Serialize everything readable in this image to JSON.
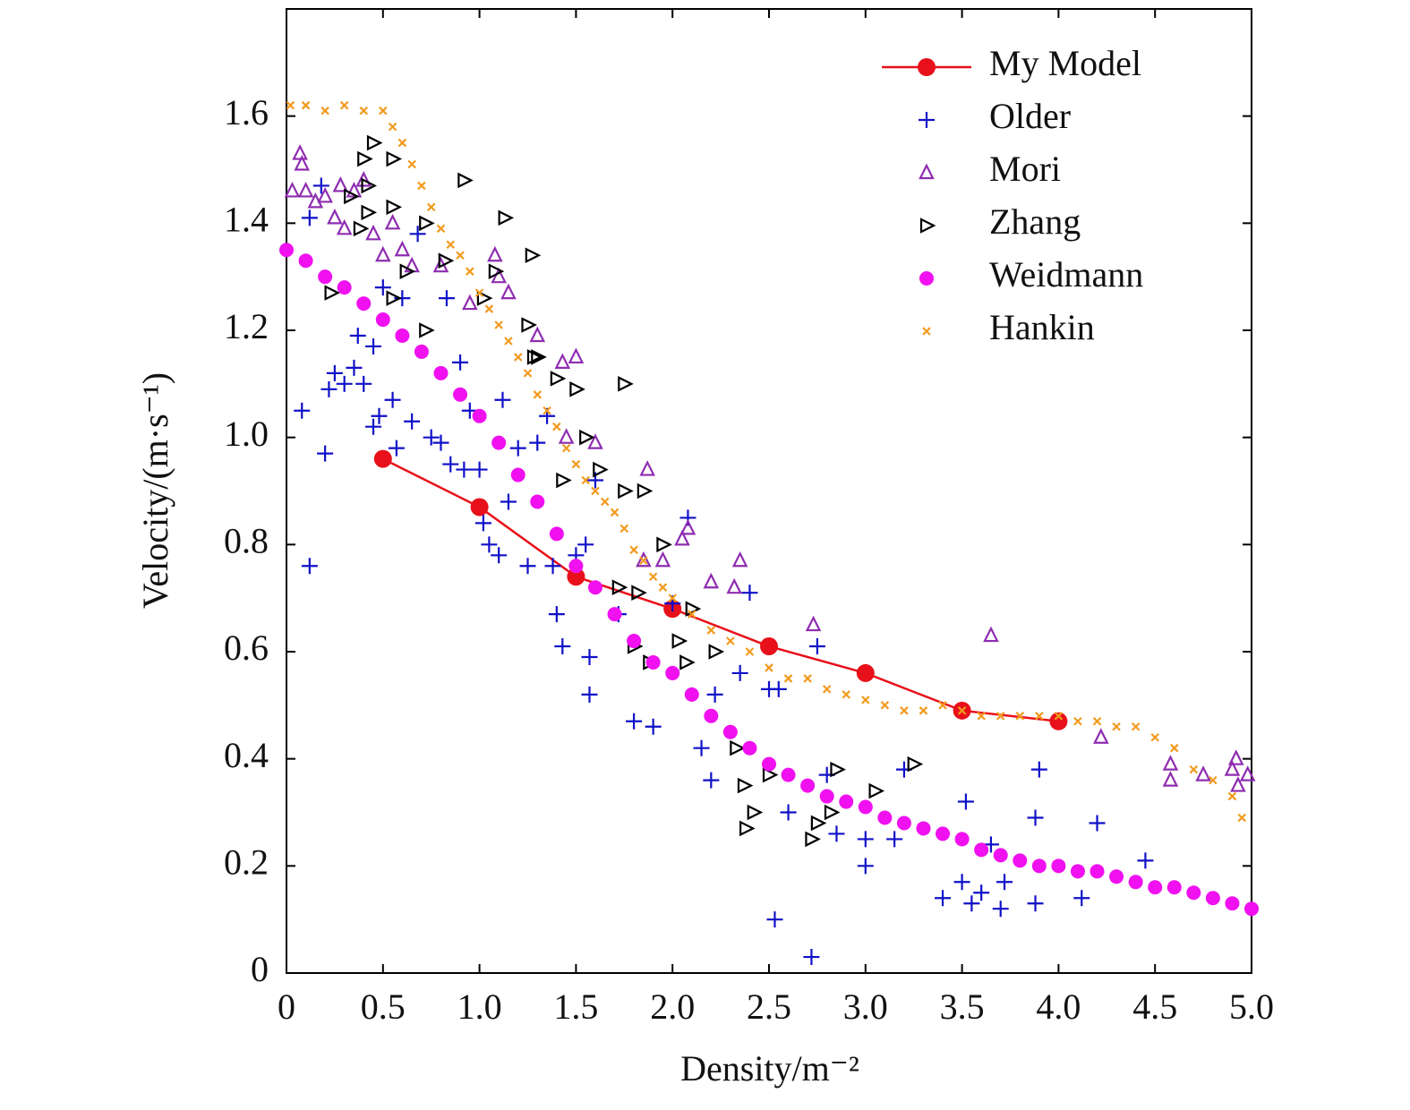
{
  "chart_data": {
    "type": "scatter",
    "x_label": "Density/m⁻²",
    "y_label": "Velocity/(m·s⁻¹)",
    "xlim": [
      0,
      5
    ],
    "ylim": [
      0,
      1.8
    ],
    "xticks": [
      0,
      0.5,
      {
        "value": 1,
        "label": "1.0"
      },
      1.5,
      {
        "value": 2,
        "label": "2.0"
      },
      2.5,
      {
        "value": 3,
        "label": "3.0"
      },
      3.5,
      {
        "value": 4,
        "label": "4.0"
      },
      4.5,
      {
        "value": 5,
        "label": "5.0"
      }
    ],
    "yticks": [
      0,
      0.2,
      0.4,
      0.6,
      0.8,
      {
        "value": 1,
        "label": "1.0"
      },
      1.2,
      1.4,
      1.6
    ],
    "legend": "upper right",
    "series": [
      {
        "name": "My Model",
        "color": "#e8101a",
        "marker": "circle",
        "line": true,
        "x": [
          0.5,
          1,
          1.5,
          2,
          2.5,
          3,
          3.5,
          4
        ],
        "values": [
          0.96,
          0.87,
          0.74,
          0.68,
          0.61,
          0.56,
          0.49,
          0.47
        ]
      },
      {
        "name": "Older",
        "color": "#1010c8",
        "marker": "plus",
        "x": [
          0.08,
          0.12,
          0.2,
          0.12,
          0.18,
          0.22,
          0.25,
          0.3,
          0.35,
          0.37,
          0.4,
          0.45,
          0.45,
          0.48,
          0.5,
          0.55,
          0.57,
          0.6,
          0.65,
          0.68,
          0.75,
          0.8,
          0.83,
          0.85,
          0.9,
          0.92,
          0.95,
          1.0,
          1.02,
          1.05,
          1.1,
          1.12,
          1.15,
          1.2,
          1.25,
          1.3,
          1.35,
          1.38,
          1.4,
          1.43,
          1.5,
          1.55,
          1.57,
          1.57,
          1.6,
          1.72,
          1.8,
          1.9,
          2.0,
          2.08,
          2.15,
          2.2,
          2.22,
          2.35,
          2.4,
          2.5,
          2.53,
          2.55,
          2.6,
          2.72,
          2.75,
          2.8,
          2.85,
          3.0,
          3.0,
          3.15,
          3.2,
          3.4,
          3.5,
          3.52,
          3.55,
          3.6,
          3.65,
          3.7,
          3.72,
          3.88,
          3.88,
          3.9,
          4.12,
          4.2,
          4.45
        ],
        "values": [
          1.05,
          0.76,
          0.97,
          1.41,
          1.47,
          1.09,
          1.12,
          1.1,
          1.13,
          1.19,
          1.1,
          1.17,
          1.02,
          1.04,
          1.28,
          1.07,
          0.98,
          1.26,
          1.03,
          1.38,
          1.0,
          0.99,
          1.26,
          0.95,
          1.14,
          0.94,
          1.05,
          0.94,
          0.84,
          0.8,
          0.78,
          1.07,
          0.88,
          0.98,
          0.76,
          0.99,
          1.04,
          0.76,
          0.67,
          0.61,
          0.78,
          0.8,
          0.59,
          0.52,
          0.92,
          0.67,
          0.47,
          0.46,
          0.69,
          0.85,
          0.42,
          0.36,
          0.52,
          0.56,
          0.71,
          0.53,
          0.1,
          0.53,
          0.3,
          0.03,
          0.61,
          0.37,
          0.26,
          0.2,
          0.25,
          0.25,
          0.38,
          0.14,
          0.17,
          0.32,
          0.13,
          0.15,
          0.24,
          0.12,
          0.17,
          0.13,
          0.29,
          0.38,
          0.14,
          0.28,
          0.21
        ]
      },
      {
        "name": "Mori",
        "color": "#8e2cb0",
        "marker": "triangle-up",
        "x": [
          0.03,
          0.07,
          0.08,
          0.1,
          0.15,
          0.2,
          0.25,
          0.28,
          0.3,
          0.35,
          0.4,
          0.45,
          0.5,
          0.55,
          0.6,
          0.65,
          0.8,
          0.95,
          1.08,
          1.1,
          1.15,
          1.3,
          1.43,
          1.5,
          1.45,
          1.6,
          1.85,
          1.87,
          1.95,
          2.05,
          2.08,
          2.2,
          2.32,
          2.35,
          2.73,
          3.65,
          4.22,
          4.58,
          4.58,
          4.75,
          4.9,
          4.92,
          4.93,
          4.98
        ],
        "values": [
          1.46,
          1.53,
          1.51,
          1.46,
          1.44,
          1.45,
          1.41,
          1.47,
          1.39,
          1.46,
          1.48,
          1.38,
          1.34,
          1.4,
          1.35,
          1.32,
          1.32,
          1.25,
          1.34,
          1.3,
          1.27,
          1.19,
          1.14,
          1.15,
          1.0,
          0.99,
          0.77,
          0.94,
          0.77,
          0.81,
          0.83,
          0.73,
          0.72,
          0.77,
          0.65,
          0.63,
          0.44,
          0.39,
          0.36,
          0.37,
          0.38,
          0.4,
          0.35,
          0.37
        ]
      },
      {
        "name": "Zhang",
        "color": "#000000",
        "marker": "triangle-right",
        "x": [
          0.23,
          0.33,
          0.38,
          0.4,
          0.42,
          0.42,
          0.45,
          0.55,
          0.55,
          0.55,
          0.62,
          0.72,
          0.72,
          0.82,
          0.92,
          1.02,
          1.08,
          1.13,
          1.25,
          1.27,
          1.28,
          1.3,
          1.4,
          1.43,
          1.5,
          1.55,
          1.62,
          1.72,
          1.75,
          1.75,
          1.8,
          1.82,
          1.85,
          1.88,
          1.95,
          2.03,
          2.07,
          2.1,
          2.22,
          2.33,
          2.37,
          2.38,
          2.42,
          2.5,
          2.72,
          2.75,
          2.82,
          2.85,
          3.05,
          3.25
        ],
        "values": [
          1.27,
          1.45,
          1.39,
          1.52,
          1.47,
          1.42,
          1.55,
          1.52,
          1.43,
          1.26,
          1.31,
          1.4,
          1.2,
          1.33,
          1.48,
          1.26,
          1.31,
          1.41,
          1.21,
          1.34,
          1.15,
          1.15,
          1.11,
          0.92,
          1.09,
          1.0,
          0.94,
          0.72,
          0.9,
          1.1,
          0.61,
          0.71,
          0.9,
          0.58,
          0.8,
          0.62,
          0.58,
          0.68,
          0.6,
          0.42,
          0.35,
          0.27,
          0.3,
          0.37,
          0.25,
          0.28,
          0.3,
          0.38,
          0.34,
          0.39
        ]
      },
      {
        "name": "Weidmann",
        "color": "#f010f0",
        "marker": "dot",
        "x": [
          0,
          0.1,
          0.2,
          0.3,
          0.4,
          0.5,
          0.6,
          0.7,
          0.8,
          0.9,
          1.0,
          1.1,
          1.2,
          1.3,
          1.4,
          1.5,
          1.6,
          1.7,
          1.8,
          1.9,
          2.0,
          2.1,
          2.2,
          2.3,
          2.4,
          2.5,
          2.6,
          2.7,
          2.8,
          2.9,
          3.0,
          3.1,
          3.2,
          3.3,
          3.4,
          3.5,
          3.6,
          3.7,
          3.8,
          3.9,
          4.0,
          4.1,
          4.2,
          4.3,
          4.4,
          4.5,
          4.6,
          4.7,
          4.8,
          4.9,
          5.0
        ],
        "values": [
          1.35,
          1.33,
          1.3,
          1.28,
          1.25,
          1.22,
          1.19,
          1.16,
          1.12,
          1.08,
          1.04,
          0.99,
          0.93,
          0.88,
          0.82,
          0.76,
          0.72,
          0.67,
          0.62,
          0.58,
          0.56,
          0.52,
          0.48,
          0.45,
          0.42,
          0.39,
          0.37,
          0.35,
          0.33,
          0.32,
          0.31,
          0.29,
          0.28,
          0.27,
          0.26,
          0.25,
          0.23,
          0.22,
          0.21,
          0.2,
          0.2,
          0.19,
          0.19,
          0.18,
          0.17,
          0.16,
          0.16,
          0.15,
          0.14,
          0.13,
          0.12
        ]
      },
      {
        "name": "Hankin",
        "color": "#f29a1e",
        "marker": "x",
        "x": [
          0.02,
          0.1,
          0.2,
          0.3,
          0.4,
          0.5,
          0.55,
          0.6,
          0.65,
          0.7,
          0.75,
          0.8,
          0.85,
          0.9,
          0.95,
          1.0,
          1.05,
          1.1,
          1.15,
          1.2,
          1.25,
          1.3,
          1.35,
          1.4,
          1.45,
          1.5,
          1.55,
          1.6,
          1.65,
          1.7,
          1.75,
          1.8,
          1.85,
          1.9,
          1.95,
          2.0,
          2.1,
          2.2,
          2.3,
          2.4,
          2.5,
          2.6,
          2.7,
          2.8,
          2.9,
          3.0,
          3.1,
          3.2,
          3.3,
          3.4,
          3.5,
          3.6,
          3.7,
          3.8,
          3.9,
          4.0,
          4.1,
          4.2,
          4.3,
          4.4,
          4.5,
          4.6,
          4.7,
          4.8,
          4.9,
          4.95
        ],
        "values": [
          1.62,
          1.62,
          1.61,
          1.62,
          1.61,
          1.61,
          1.58,
          1.55,
          1.51,
          1.47,
          1.43,
          1.39,
          1.36,
          1.34,
          1.31,
          1.27,
          1.24,
          1.21,
          1.18,
          1.15,
          1.12,
          1.08,
          1.05,
          1.02,
          0.98,
          0.95,
          0.92,
          0.9,
          0.88,
          0.86,
          0.83,
          0.79,
          0.77,
          0.74,
          0.72,
          0.7,
          0.67,
          0.64,
          0.62,
          0.6,
          0.57,
          0.55,
          0.55,
          0.53,
          0.52,
          0.51,
          0.5,
          0.49,
          0.49,
          0.5,
          0.49,
          0.48,
          0.48,
          0.48,
          0.48,
          0.48,
          0.47,
          0.47,
          0.46,
          0.46,
          0.44,
          0.42,
          0.38,
          0.36,
          0.33,
          0.29
        ]
      }
    ]
  }
}
